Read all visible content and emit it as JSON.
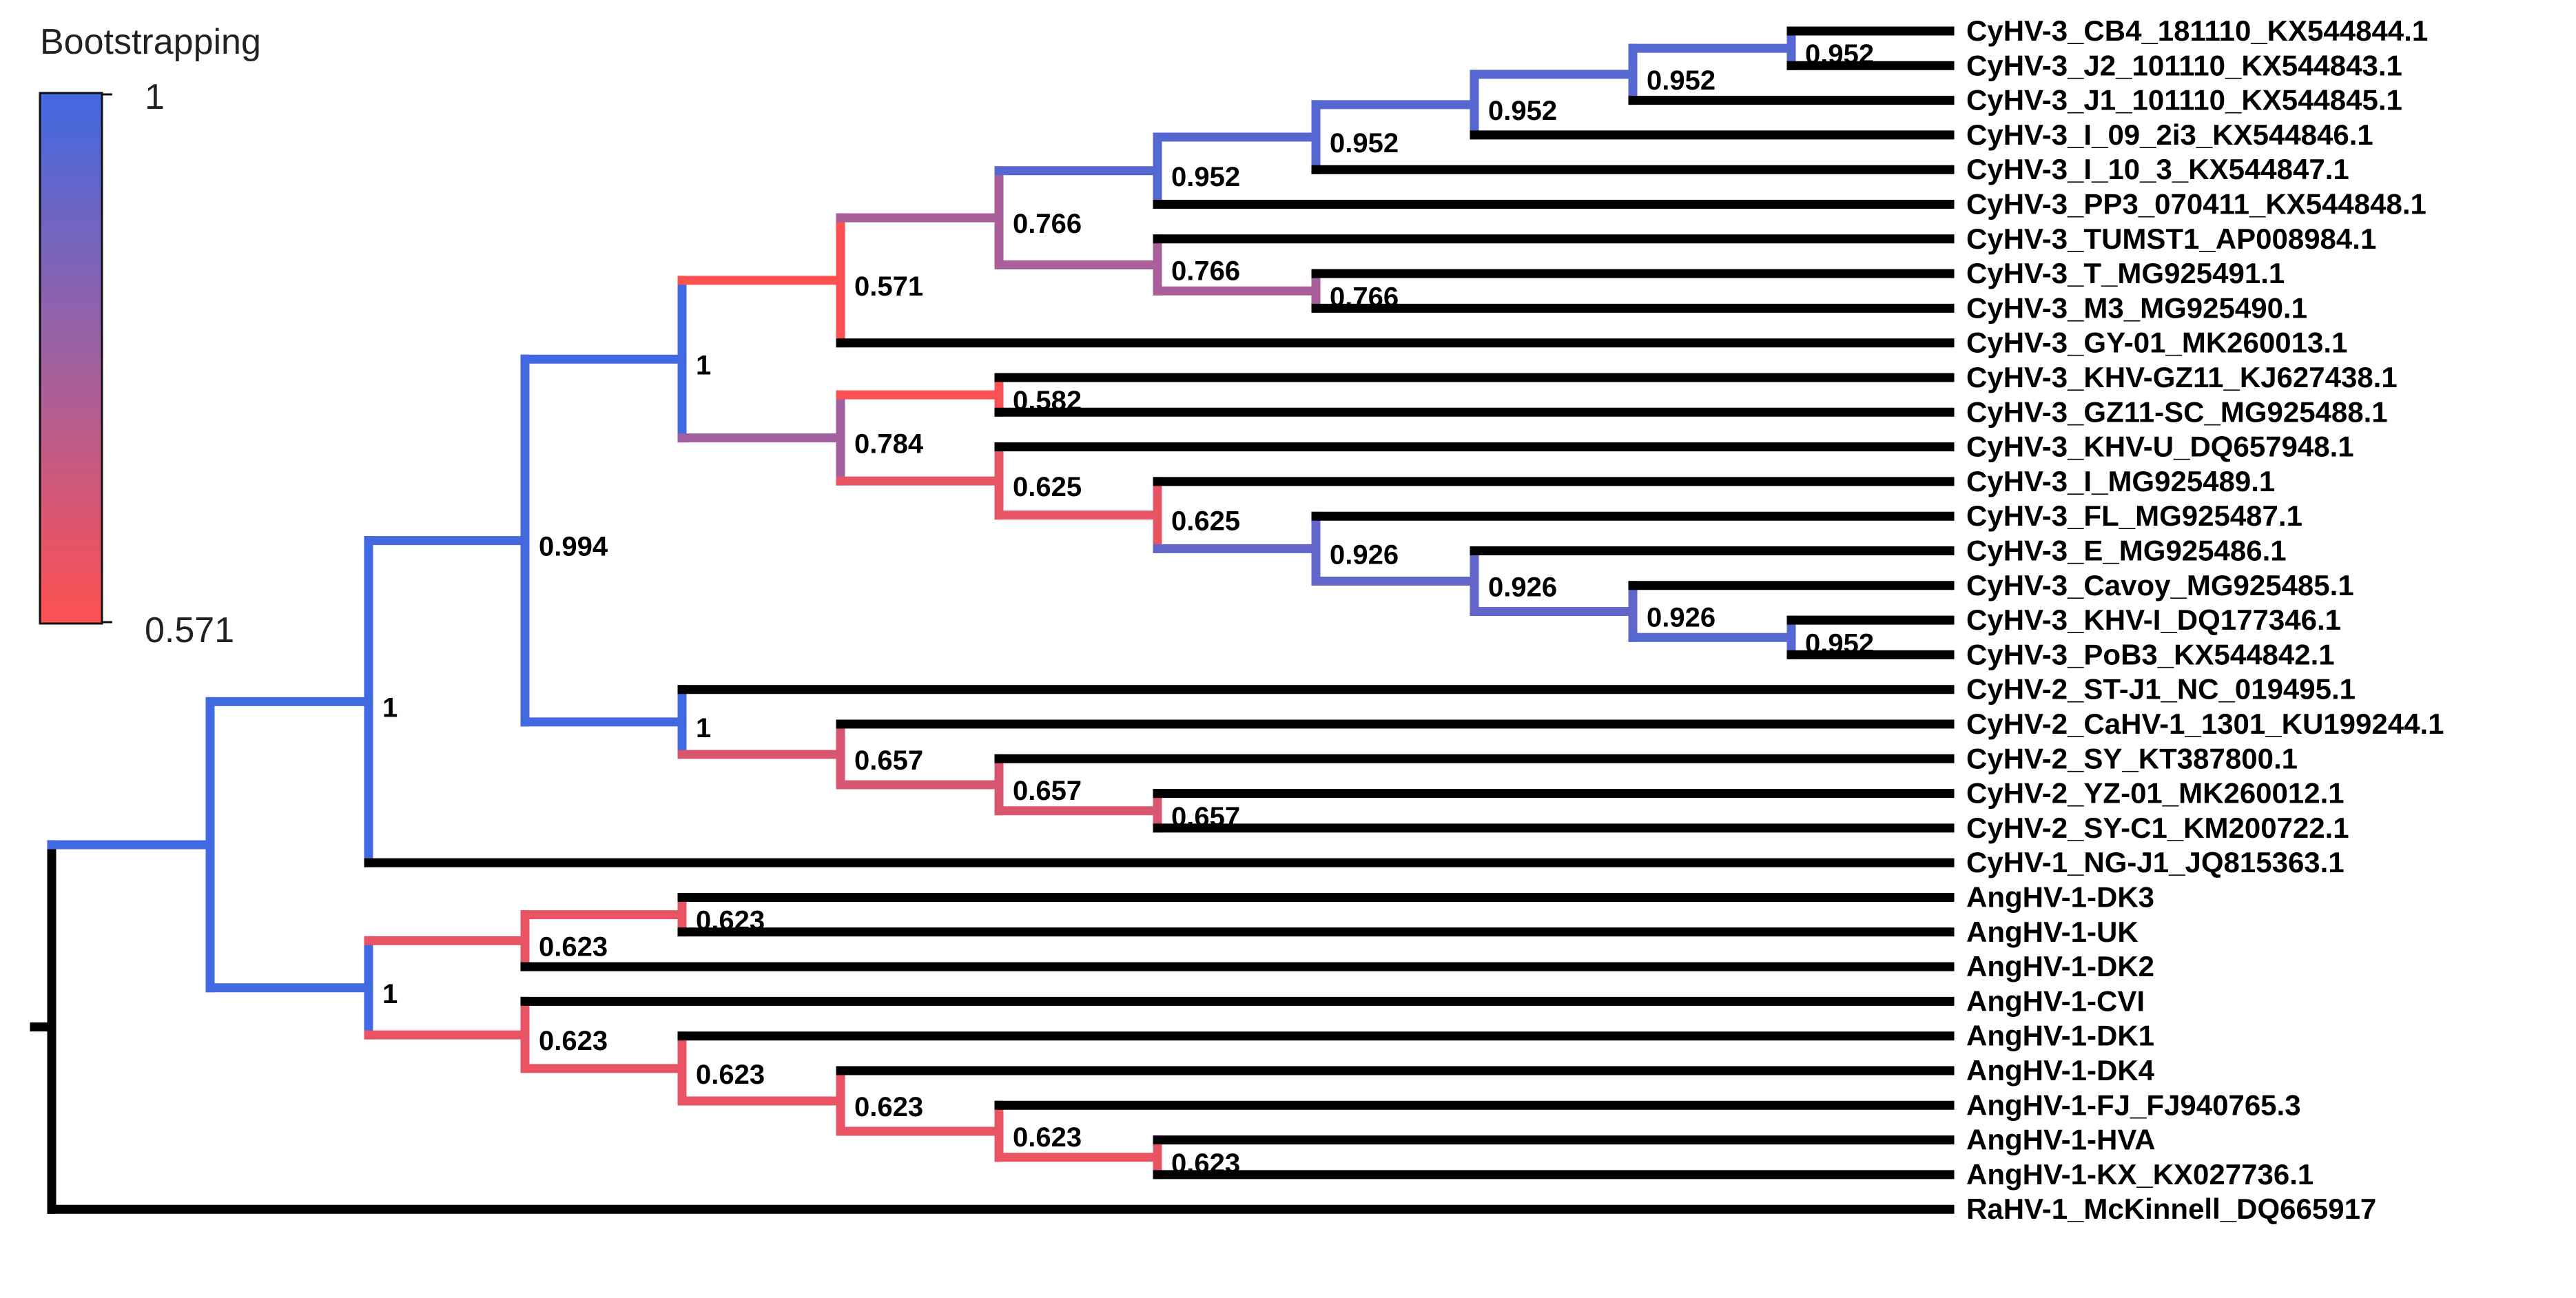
{
  "legend": {
    "title": "Bootstrapping",
    "max_label": "1",
    "min_label": "0.571",
    "max_color": "#4169e1",
    "min_color": "#ff5050",
    "mid_color": "#a060a0"
  },
  "taxa": [
    "CyHV-3_CB4_181110_KX544844.1",
    "CyHV-3_J2_101110_KX544843.1",
    "CyHV-3_J1_101110_KX544845.1",
    "CyHV-3_I_09_2i3_KX544846.1",
    "CyHV-3_I_10_3_KX544847.1",
    "CyHV-3_PP3_070411_KX544848.1",
    "CyHV-3_TUMST1_AP008984.1",
    "CyHV-3_T_MG925491.1",
    "CyHV-3_M3_MG925490.1",
    "CyHV-3_GY-01_MK260013.1",
    "CyHV-3_KHV-GZ11_KJ627438.1",
    "CyHV-3_GZ11-SC_MG925488.1",
    "CyHV-3_KHV-U_DQ657948.1",
    "CyHV-3_I_MG925489.1",
    "CyHV-3_FL_MG925487.1",
    "CyHV-3_E_MG925486.1",
    "CyHV-3_Cavoy_MG925485.1",
    "CyHV-3_KHV-I_DQ177346.1",
    "CyHV-3_PoB3_KX544842.1",
    "CyHV-2_ST-J1_NC_019495.1",
    "CyHV-2_CaHV-1_1301_KU199244.1",
    "CyHV-2_SY_KT387800.1",
    "CyHV-2_YZ-01_MK260012.1",
    "CyHV-2_SY-C1_KM200722.1",
    "CyHV-1_NG-J1_JQ815363.1",
    "AngHV-1-DK3",
    "AngHV-1-UK",
    "AngHV-1-DK2",
    "AngHV-1-CVI",
    "AngHV-1-DK1",
    "AngHV-1-DK4",
    "AngHV-1-FJ_FJ940765.3",
    "AngHV-1-HVA",
    "AngHV-1-KX_KX027736.1",
    "RaHV-1_McKinnell_DQ665917"
  ],
  "nodes": [
    {
      "id": "n1",
      "bootstrap": "0.952",
      "support": 0.952,
      "children": [
        0,
        1
      ]
    },
    {
      "id": "n2",
      "bootstrap": "0.952",
      "support": 0.952,
      "children": [
        "n1",
        2
      ]
    },
    {
      "id": "n3",
      "bootstrap": "0.952",
      "support": 0.952,
      "children": [
        "n2",
        3
      ]
    },
    {
      "id": "n4",
      "bootstrap": "0.952",
      "support": 0.952,
      "children": [
        "n3",
        4
      ]
    },
    {
      "id": "n5",
      "bootstrap": "0.952",
      "support": 0.952,
      "children": [
        "n4",
        5
      ]
    },
    {
      "id": "n6",
      "bootstrap": "0.766",
      "support": 0.766,
      "children": [
        7,
        8
      ]
    },
    {
      "id": "n7",
      "bootstrap": "0.766",
      "support": 0.766,
      "children": [
        6,
        "n6"
      ]
    },
    {
      "id": "n8",
      "bootstrap": "0.766",
      "support": 0.766,
      "children": [
        "n5",
        "n7"
      ]
    },
    {
      "id": "n9",
      "bootstrap": "0.571",
      "support": 0.571,
      "children": [
        "n8",
        9
      ]
    },
    {
      "id": "n10",
      "bootstrap": "0.582",
      "support": 0.582,
      "children": [
        10,
        11
      ]
    },
    {
      "id": "n11",
      "bootstrap": "0.952",
      "support": 0.952,
      "children": [
        17,
        18
      ]
    },
    {
      "id": "n12",
      "bootstrap": "0.926",
      "support": 0.926,
      "children": [
        16,
        "n11"
      ]
    },
    {
      "id": "n13",
      "bootstrap": "0.926",
      "support": 0.926,
      "children": [
        15,
        "n12"
      ]
    },
    {
      "id": "n14",
      "bootstrap": "0.926",
      "support": 0.926,
      "children": [
        14,
        "n13"
      ]
    },
    {
      "id": "n15",
      "bootstrap": "0.625",
      "support": 0.625,
      "children": [
        13,
        "n14"
      ]
    },
    {
      "id": "n16",
      "bootstrap": "0.625",
      "support": 0.625,
      "children": [
        12,
        "n15"
      ]
    },
    {
      "id": "n17",
      "bootstrap": "0.784",
      "support": 0.784,
      "children": [
        "n10",
        "n16"
      ]
    },
    {
      "id": "n18",
      "bootstrap": "1",
      "support": 1.0,
      "children": [
        "n9",
        "n17"
      ]
    },
    {
      "id": "n19",
      "bootstrap": "0.657",
      "support": 0.657,
      "children": [
        22,
        23
      ]
    },
    {
      "id": "n20",
      "bootstrap": "0.657",
      "support": 0.657,
      "children": [
        21,
        "n19"
      ]
    },
    {
      "id": "n21",
      "bootstrap": "0.657",
      "support": 0.657,
      "children": [
        20,
        "n20"
      ]
    },
    {
      "id": "n22",
      "bootstrap": "1",
      "support": 1.0,
      "children": [
        19,
        "n21"
      ]
    },
    {
      "id": "n23",
      "bootstrap": "0.994",
      "support": 0.994,
      "children": [
        "n18",
        "n22"
      ]
    },
    {
      "id": "n24",
      "bootstrap": "1",
      "support": 1.0,
      "children": [
        "n23",
        24
      ]
    },
    {
      "id": "n25",
      "bootstrap": "0.623",
      "support": 0.623,
      "children": [
        25,
        26
      ]
    },
    {
      "id": "n26",
      "bootstrap": "0.623",
      "support": 0.623,
      "children": [
        "n25",
        27
      ]
    },
    {
      "id": "n27",
      "bootstrap": "0.623",
      "support": 0.623,
      "children": [
        32,
        33
      ]
    },
    {
      "id": "n28",
      "bootstrap": "0.623",
      "support": 0.623,
      "children": [
        31,
        "n27"
      ]
    },
    {
      "id": "n29",
      "bootstrap": "0.623",
      "support": 0.623,
      "children": [
        30,
        "n28"
      ]
    },
    {
      "id": "n30",
      "bootstrap": "0.623",
      "support": 0.623,
      "children": [
        29,
        "n29"
      ]
    },
    {
      "id": "n31",
      "bootstrap": "0.623",
      "support": 0.623,
      "children": [
        28,
        "n30"
      ]
    },
    {
      "id": "n32",
      "bootstrap": "1",
      "support": 1.0,
      "children": [
        "n26",
        "n31"
      ]
    },
    {
      "id": "n33",
      "bootstrap": "",
      "support": 1.0,
      "children": [
        "n24",
        "n32"
      ]
    },
    {
      "id": "root",
      "bootstrap": "",
      "support": null,
      "children": [
        "n33",
        34
      ]
    }
  ]
}
